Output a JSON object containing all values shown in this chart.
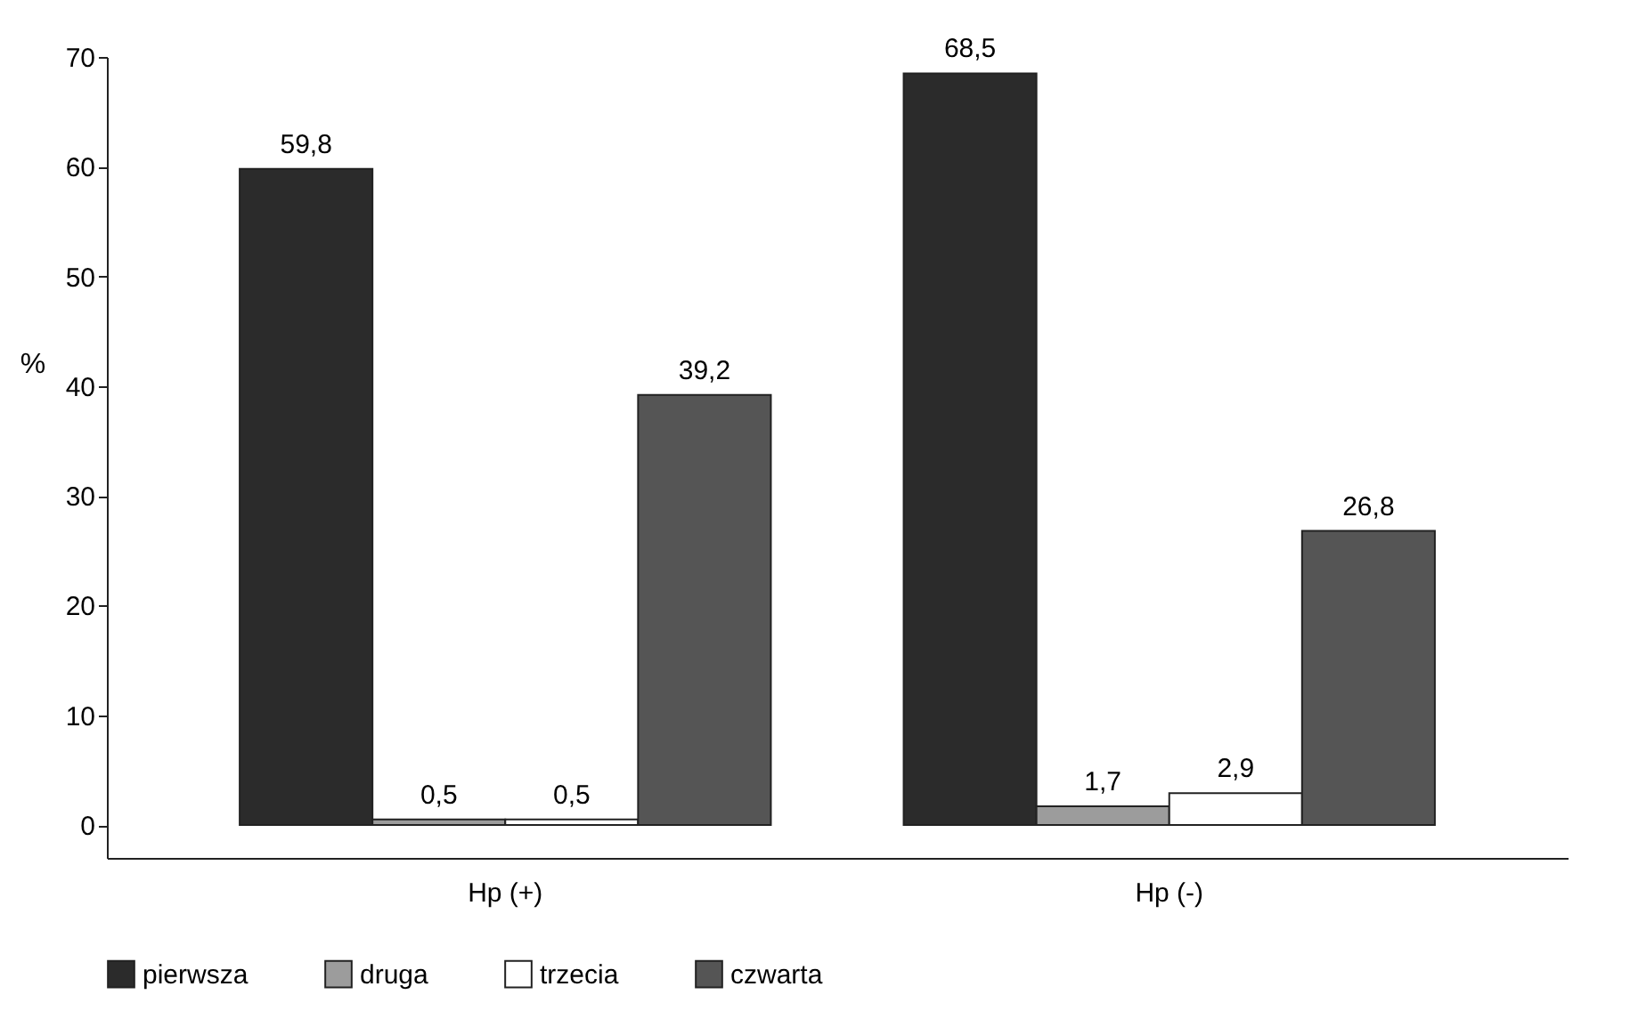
{
  "chart_data": {
    "type": "bar",
    "ylabel": "%",
    "categories": [
      "Hp (+)",
      "Hp (-)"
    ],
    "series": [
      {
        "name": "pierwsza",
        "color": "#2b2b2b",
        "values": [
          59.8,
          68.5
        ],
        "value_labels": [
          "59,8",
          "68,5"
        ]
      },
      {
        "name": "druga",
        "color": "#9c9c9c",
        "values": [
          0.5,
          1.7
        ],
        "value_labels": [
          "0,5",
          "1,7"
        ]
      },
      {
        "name": "trzecia",
        "color": "#ffffff",
        "values": [
          0.5,
          2.9
        ],
        "value_labels": [
          "0,5",
          "2,9"
        ]
      },
      {
        "name": "czwarta",
        "color": "#555555",
        "values": [
          39.2,
          26.8
        ],
        "value_labels": [
          "39,2",
          "26,8"
        ]
      }
    ],
    "ylim": [
      -3,
      70
    ],
    "yticks": [
      0,
      10,
      20,
      30,
      40,
      50,
      60,
      70
    ],
    "legend": "bottom"
  }
}
